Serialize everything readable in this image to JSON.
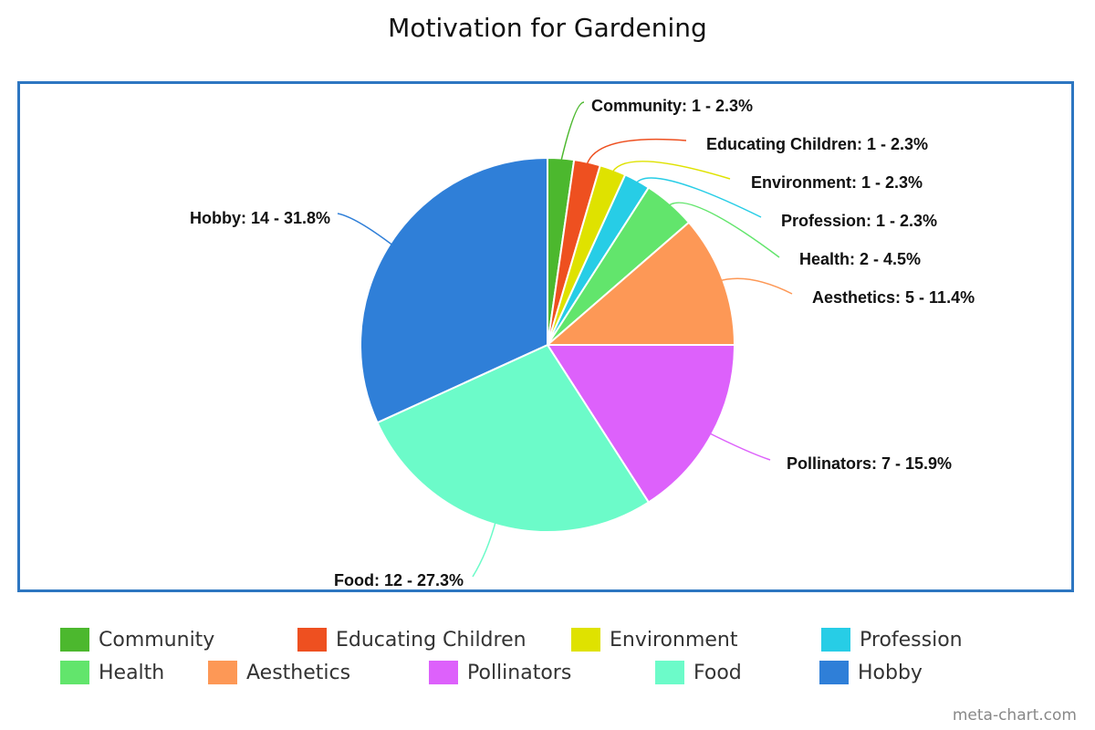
{
  "chart_data": {
    "type": "pie",
    "title": "Motivation for Gardening",
    "slices": [
      {
        "name": "Community",
        "value": 1,
        "percent": 2.3,
        "color": "#4cb82e",
        "label": "Community: 1 - 2.3%"
      },
      {
        "name": "Educating Children",
        "value": 1,
        "percent": 2.3,
        "color": "#ee5020",
        "label": "Educating Children: 1 - 2.3%"
      },
      {
        "name": "Environment",
        "value": 1,
        "percent": 2.3,
        "color": "#dfe200",
        "label": "Environment: 1 - 2.3%"
      },
      {
        "name": "Profession",
        "value": 1,
        "percent": 2.3,
        "color": "#27cde6",
        "label": "Profession: 1 - 2.3%"
      },
      {
        "name": "Health",
        "value": 2,
        "percent": 4.5,
        "color": "#62e56c",
        "label": "Health: 2 - 4.5%"
      },
      {
        "name": "Aesthetics",
        "value": 5,
        "percent": 11.4,
        "color": "#fd9856",
        "label": "Aesthetics: 5 - 11.4%"
      },
      {
        "name": "Pollinators",
        "value": 7,
        "percent": 15.9,
        "color": "#dd61fb",
        "label": "Pollinators: 7 - 15.9%"
      },
      {
        "name": "Food",
        "value": 12,
        "percent": 27.3,
        "color": "#6cfbc9",
        "label": "Food: 12 - 27.3%"
      },
      {
        "name": "Hobby",
        "value": 14,
        "percent": 31.8,
        "color": "#2f7fd8",
        "label": "Hobby: 14 - 31.8%"
      }
    ],
    "legend_position": "bottom"
  },
  "frame_color": "#2d76c1",
  "credit": "meta-chart.com"
}
